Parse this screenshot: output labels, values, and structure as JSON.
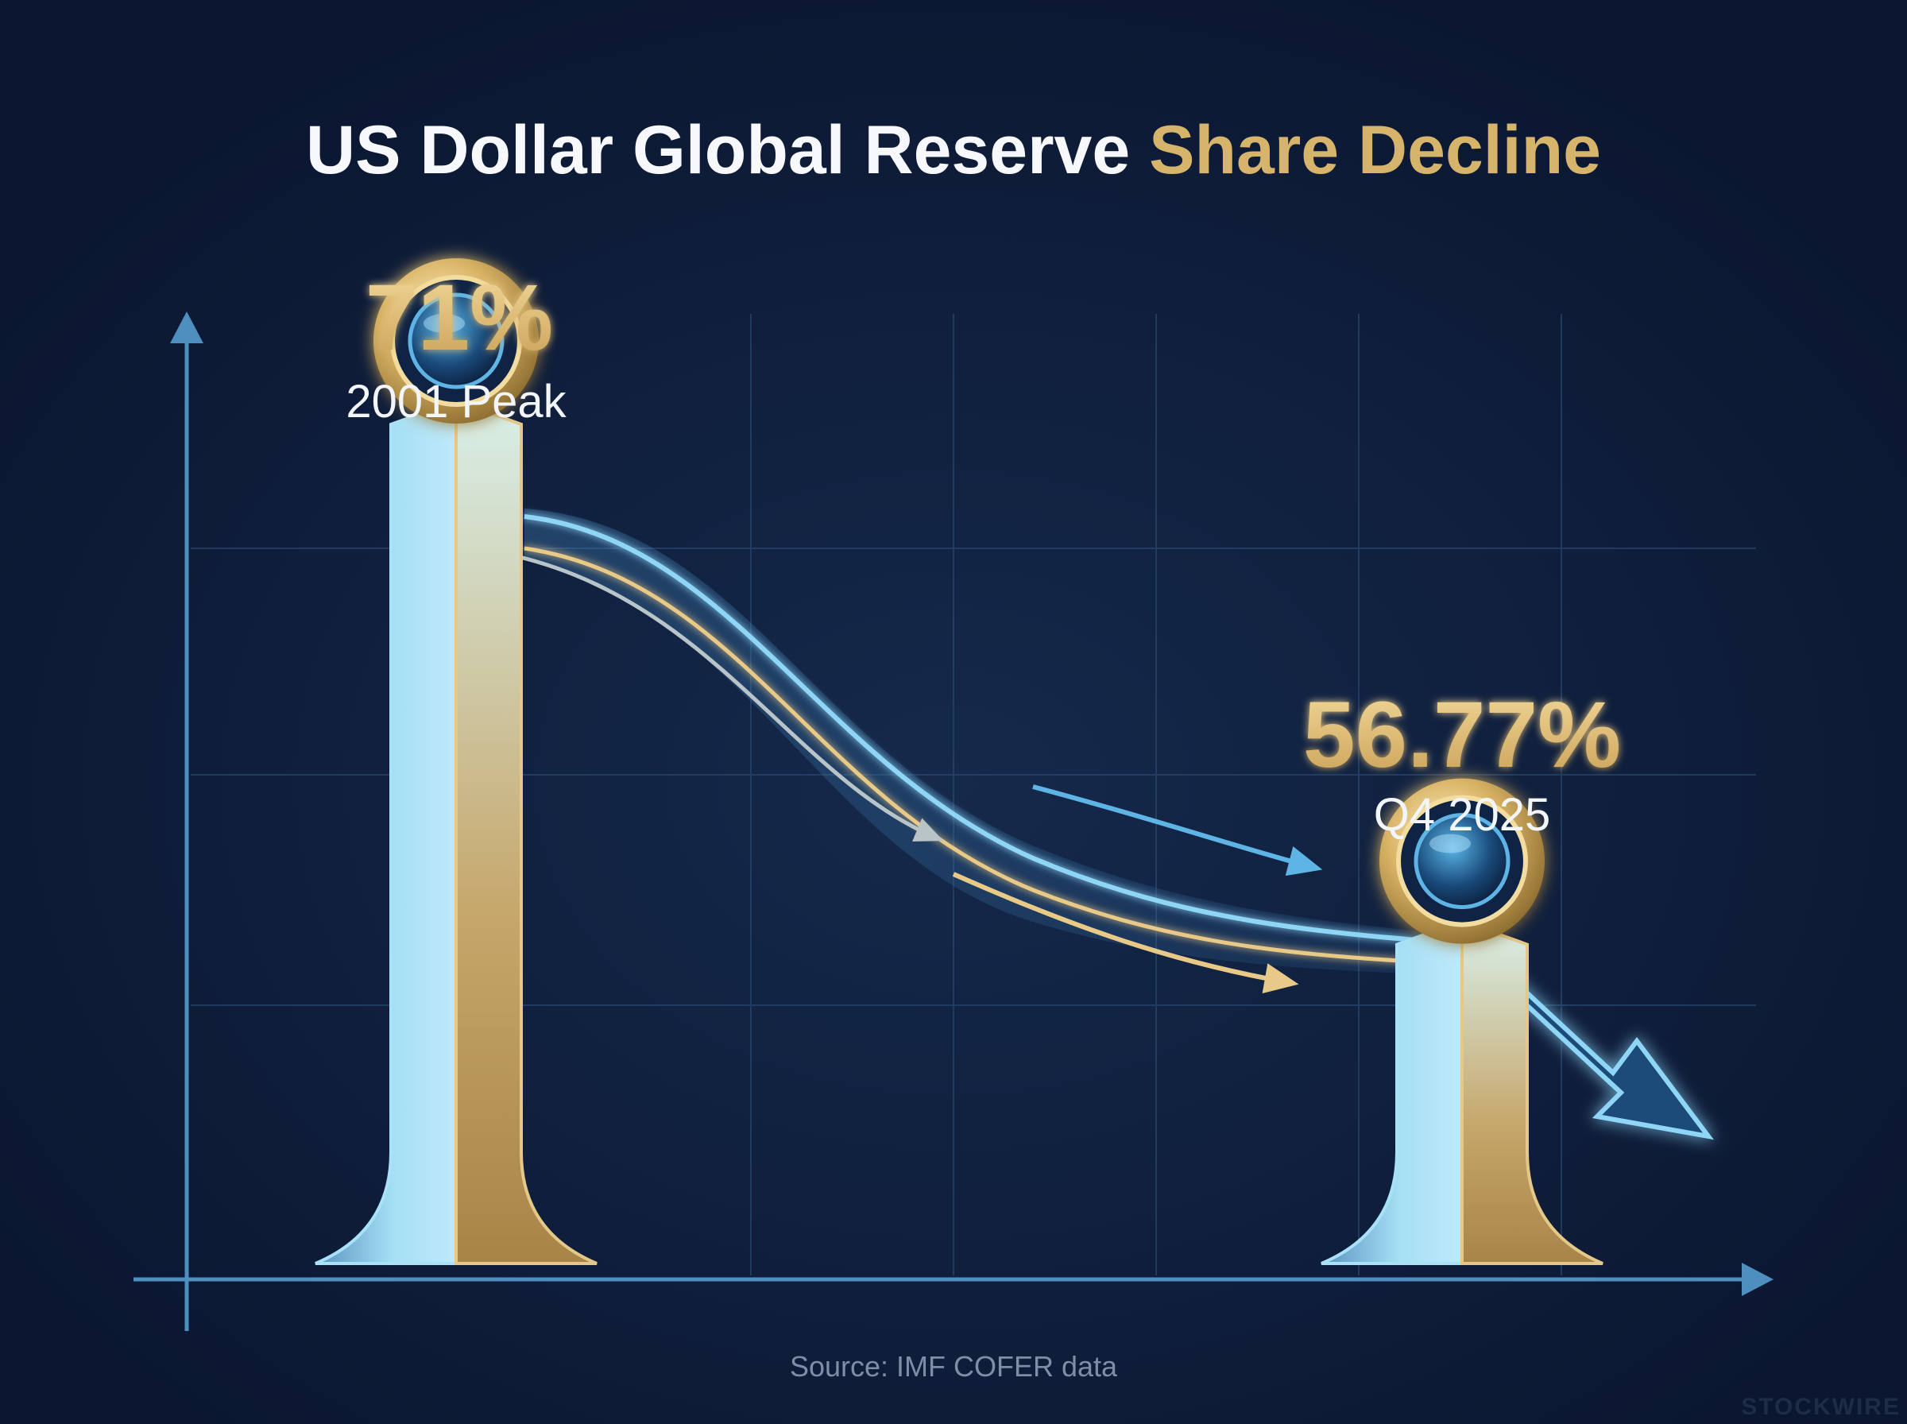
{
  "title": {
    "part1": "US Dollar Global Reserve ",
    "part2": "Share Decline"
  },
  "source": "Source: IMF COFER data",
  "watermark": "STOCKWIRE",
  "colors": {
    "background": "#0d1a35",
    "gold": "#d6b46c",
    "blue": "#8fd2ee",
    "axis": "#4e8fbf",
    "white": "#f2f5fa"
  },
  "chart_data": {
    "type": "bar",
    "categories": [
      "2001 Peak",
      "Q4 2025"
    ],
    "values": [
      71,
      56.77
    ],
    "value_labels": [
      "71%",
      "56.77%"
    ],
    "ylabel": "",
    "xlabel": "",
    "grid": true,
    "trend": "decline"
  }
}
